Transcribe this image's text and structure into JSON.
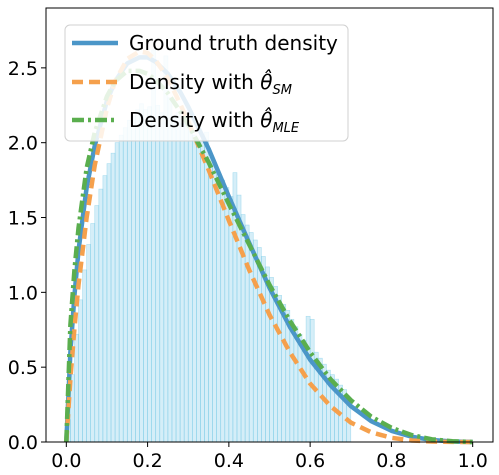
{
  "chart_data": {
    "type": "line",
    "title": "",
    "xlabel": "",
    "ylabel": "",
    "xlim": [
      -0.05,
      1.05
    ],
    "ylim": [
      0,
      2.9
    ],
    "x_ticks": [
      0.0,
      0.2,
      0.4,
      0.6,
      0.8,
      1.0
    ],
    "x_tick_labels": [
      "0.0",
      "0.2",
      "0.4",
      "0.6",
      "0.8",
      "1.0"
    ],
    "y_ticks": [
      0.0,
      0.5,
      1.0,
      1.5,
      2.0,
      2.5
    ],
    "y_tick_labels": [
      "0.0",
      "0.5",
      "1.0",
      "1.5",
      "2.0",
      "2.5"
    ],
    "grid": false,
    "legend_position": "top-left",
    "legend": {
      "ground_truth": "Ground truth density",
      "sm_prefix": "Density with ",
      "sm_symbol": "θ̂",
      "sm_subscript": "SM",
      "mle_prefix": "Density with ",
      "mle_symbol": "θ̂",
      "mle_subscript": "MLE"
    },
    "histogram": {
      "color": "#87ceeb",
      "edge_color": "#5bbfe0",
      "alpha": 0.35,
      "bin_width": 0.01,
      "bin_start": 0.0,
      "values": [
        0.15,
        0.45,
        0.72,
        0.95,
        1.15,
        1.32,
        1.46,
        1.58,
        1.69,
        1.78,
        1.86,
        1.93,
        2.0,
        2.05,
        2.1,
        2.15,
        2.18,
        2.22,
        2.26,
        2.22,
        2.24,
        2.62,
        2.25,
        2.2,
        2.58,
        2.3,
        2.18,
        2.2,
        2.13,
        2.12,
        2.12,
        2.05,
        2.0,
        2.02,
        2.07,
        1.9,
        1.85,
        1.8,
        1.75,
        1.7,
        1.64,
        1.8,
        1.65,
        1.52,
        1.45,
        1.4,
        1.35,
        1.3,
        1.24,
        1.17,
        1.1,
        1.04,
        0.98,
        0.92,
        0.88,
        0.82,
        0.77,
        0.72,
        0.68,
        0.84,
        0.82,
        0.6,
        0.56,
        0.52,
        0.48,
        0.45,
        0.42,
        0.38,
        0.35,
        0.3
      ]
    },
    "series": [
      {
        "name": "Ground truth density",
        "color": "#4b96c8",
        "style": "solid",
        "x": [
          0.0,
          0.01,
          0.02,
          0.03,
          0.05,
          0.07,
          0.1,
          0.12,
          0.15,
          0.18,
          0.2,
          0.22,
          0.25,
          0.28,
          0.3,
          0.35,
          0.4,
          0.45,
          0.5,
          0.55,
          0.6,
          0.65,
          0.7,
          0.75,
          0.8,
          0.85,
          0.9,
          0.95,
          1.0
        ],
        "y": [
          0.0,
          0.6,
          0.98,
          1.28,
          1.7,
          1.98,
          2.28,
          2.41,
          2.53,
          2.57,
          2.57,
          2.54,
          2.46,
          2.34,
          2.24,
          1.96,
          1.64,
          1.33,
          1.03,
          0.77,
          0.55,
          0.38,
          0.24,
          0.14,
          0.075,
          0.035,
          0.013,
          0.003,
          0.0
        ]
      },
      {
        "name": "Density with θ̂SM",
        "color": "#f5a04c",
        "style": "dashed",
        "x": [
          0.0,
          0.01,
          0.02,
          0.03,
          0.05,
          0.07,
          0.1,
          0.12,
          0.15,
          0.18,
          0.2,
          0.22,
          0.25,
          0.28,
          0.3,
          0.35,
          0.4,
          0.45,
          0.5,
          0.55,
          0.6,
          0.65,
          0.7,
          0.75,
          0.8,
          0.85,
          0.9,
          0.95,
          1.0
        ],
        "y": [
          0.0,
          0.42,
          0.76,
          1.05,
          1.5,
          1.85,
          2.23,
          2.41,
          2.56,
          2.61,
          2.6,
          2.55,
          2.43,
          2.26,
          2.14,
          1.82,
          1.48,
          1.15,
          0.85,
          0.6,
          0.39,
          0.24,
          0.13,
          0.065,
          0.028,
          0.01,
          0.003,
          0.0005,
          0.0
        ]
      },
      {
        "name": "Density with θ̂MLE",
        "color": "#5aae4e",
        "style": "dashdot",
        "x": [
          0.0,
          0.01,
          0.02,
          0.03,
          0.05,
          0.07,
          0.1,
          0.12,
          0.15,
          0.18,
          0.2,
          0.22,
          0.25,
          0.28,
          0.3,
          0.35,
          0.4,
          0.45,
          0.5,
          0.55,
          0.6,
          0.65,
          0.7,
          0.75,
          0.8,
          0.85,
          0.9,
          0.95,
          1.0
        ],
        "y": [
          0.0,
          0.78,
          1.15,
          1.43,
          1.83,
          2.07,
          2.31,
          2.41,
          2.48,
          2.48,
          2.46,
          2.42,
          2.33,
          2.21,
          2.12,
          1.87,
          1.59,
          1.32,
          1.05,
          0.81,
          0.6,
          0.42,
          0.28,
          0.17,
          0.095,
          0.046,
          0.018,
          0.005,
          0.0
        ]
      }
    ]
  }
}
